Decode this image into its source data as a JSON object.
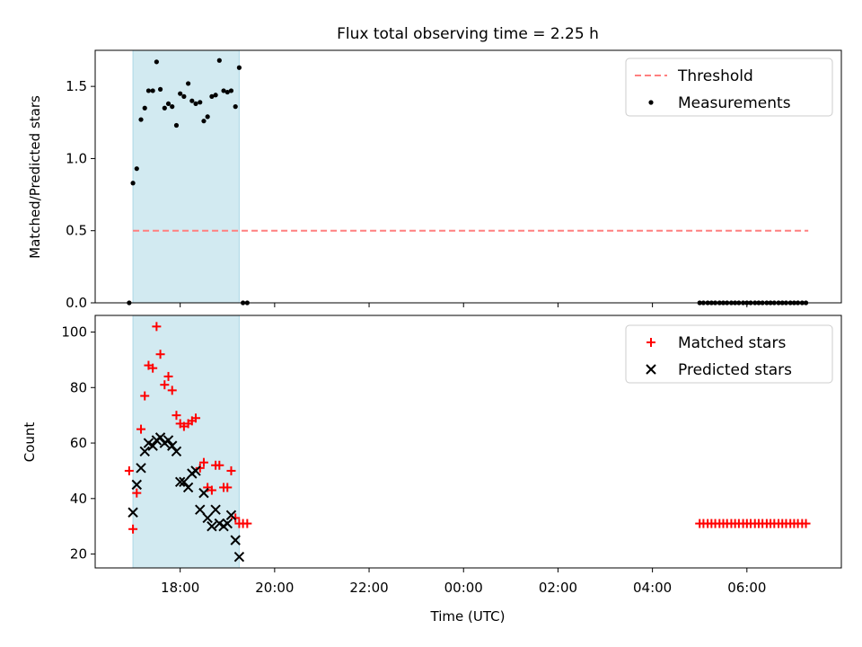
{
  "title": "Flux total observing time = 2.25 h",
  "colors": {
    "shade": "#add8e6",
    "threshold": "#ff7f7f",
    "measurement": "#000000",
    "matched": "#ff0000",
    "predicted": "#000000"
  },
  "chart_data": [
    {
      "type": "scatter",
      "ylabel": "Matched/Predicted stars",
      "ylim": [
        0,
        1.75
      ],
      "xlim": [
        16.2,
        32.0
      ],
      "legend": {
        "position": "top-right",
        "entries": [
          "Threshold",
          "Measurements"
        ]
      },
      "shaded_region": [
        17.0,
        19.25
      ],
      "threshold": {
        "name": "Threshold",
        "value": 0.5,
        "x": [
          17.0,
          31.3
        ]
      },
      "series": [
        {
          "name": "Measurements",
          "x": [
            16.92,
            17.0,
            17.08,
            17.17,
            17.25,
            17.33,
            17.42,
            17.5,
            17.58,
            17.67,
            17.75,
            17.83,
            17.92,
            18.0,
            18.08,
            18.17,
            18.25,
            18.33,
            18.42,
            18.5,
            18.58,
            18.67,
            18.75,
            18.83,
            18.92,
            19.0,
            19.08,
            19.17,
            19.25,
            19.33,
            19.42,
            29.0,
            29.08,
            29.17,
            29.25,
            29.33,
            29.42,
            29.5,
            29.58,
            29.67,
            29.75,
            29.83,
            29.92,
            30.0,
            30.08,
            30.17,
            30.25,
            30.33,
            30.42,
            30.5,
            30.58,
            30.67,
            30.75,
            30.83,
            30.92,
            31.0,
            31.08,
            31.17,
            31.25
          ],
          "y": [
            0.0,
            0.83,
            0.93,
            1.27,
            1.35,
            1.47,
            1.47,
            1.67,
            1.48,
            1.35,
            1.38,
            1.36,
            1.23,
            1.45,
            1.43,
            1.52,
            1.4,
            1.38,
            1.39,
            1.26,
            1.29,
            1.43,
            1.44,
            1.68,
            1.47,
            1.46,
            1.47,
            1.36,
            1.63,
            0.0,
            0.0,
            0.0,
            0.0,
            0.0,
            0.0,
            0.0,
            0.0,
            0.0,
            0.0,
            0.0,
            0.0,
            0.0,
            0.0,
            0.0,
            0.0,
            0.0,
            0.0,
            0.0,
            0.0,
            0.0,
            0.0,
            0.0,
            0.0,
            0.0,
            0.0,
            0.0,
            0.0,
            0.0,
            0.0
          ]
        }
      ],
      "yticks": [
        0.0,
        0.5,
        1.0,
        1.5
      ],
      "ytick_labels": [
        "0.0",
        "0.5",
        "1.0",
        "1.5"
      ]
    },
    {
      "type": "scatter",
      "xlabel": "Time (UTC)",
      "ylabel": "Count",
      "ylim": [
        15,
        106
      ],
      "xlim": [
        16.2,
        32.0
      ],
      "legend": {
        "position": "top-right",
        "entries": [
          "Matched stars",
          "Predicted stars"
        ]
      },
      "shaded_region": [
        17.0,
        19.25
      ],
      "series": [
        {
          "name": "Matched stars",
          "x": [
            16.92,
            17.0,
            17.08,
            17.17,
            17.25,
            17.33,
            17.42,
            17.5,
            17.58,
            17.67,
            17.75,
            17.83,
            17.92,
            18.0,
            18.08,
            18.17,
            18.25,
            18.33,
            18.42,
            18.5,
            18.58,
            18.67,
            18.75,
            18.83,
            18.92,
            19.0,
            19.08,
            19.17,
            19.25,
            19.33,
            19.42,
            29.0,
            29.08,
            29.17,
            29.25,
            29.33,
            29.42,
            29.5,
            29.58,
            29.67,
            29.75,
            29.83,
            29.92,
            30.0,
            30.08,
            30.17,
            30.25,
            30.33,
            30.42,
            30.5,
            30.58,
            30.67,
            30.75,
            30.83,
            30.92,
            31.0,
            31.08,
            31.17,
            31.25
          ],
          "y": [
            50,
            29,
            42,
            65,
            77,
            88,
            87,
            102,
            92,
            81,
            84,
            79,
            70,
            67,
            66,
            67,
            68,
            69,
            51,
            53,
            44,
            43,
            52,
            52,
            44,
            44,
            50,
            33,
            31,
            31,
            31,
            31,
            31,
            31,
            31,
            31,
            31,
            31,
            31,
            31,
            31,
            31,
            31,
            31,
            31,
            31,
            31,
            31,
            31,
            31,
            31,
            31,
            31,
            31,
            31,
            31,
            31,
            31,
            31
          ]
        },
        {
          "name": "Predicted stars",
          "x": [
            17.0,
            17.08,
            17.17,
            17.25,
            17.33,
            17.42,
            17.5,
            17.58,
            17.67,
            17.75,
            17.83,
            17.92,
            18.0,
            18.08,
            18.17,
            18.25,
            18.33,
            18.42,
            18.5,
            18.58,
            18.67,
            18.75,
            18.83,
            18.92,
            19.0,
            19.08,
            19.17,
            19.25
          ],
          "y": [
            35,
            45,
            51,
            57,
            60,
            59,
            61,
            62,
            60,
            61,
            59,
            57,
            46,
            46,
            44,
            49,
            50,
            36,
            42,
            33,
            30,
            36,
            31,
            30,
            31,
            34,
            25,
            19
          ]
        }
      ],
      "yticks": [
        20,
        40,
        60,
        80,
        100
      ],
      "ytick_labels": [
        "20",
        "40",
        "60",
        "80",
        "100"
      ],
      "xticks": [
        18,
        20,
        22,
        24,
        26,
        28,
        30
      ],
      "xtick_labels": [
        "18:00",
        "20:00",
        "22:00",
        "00:00",
        "02:00",
        "04:00",
        "06:00"
      ]
    }
  ]
}
